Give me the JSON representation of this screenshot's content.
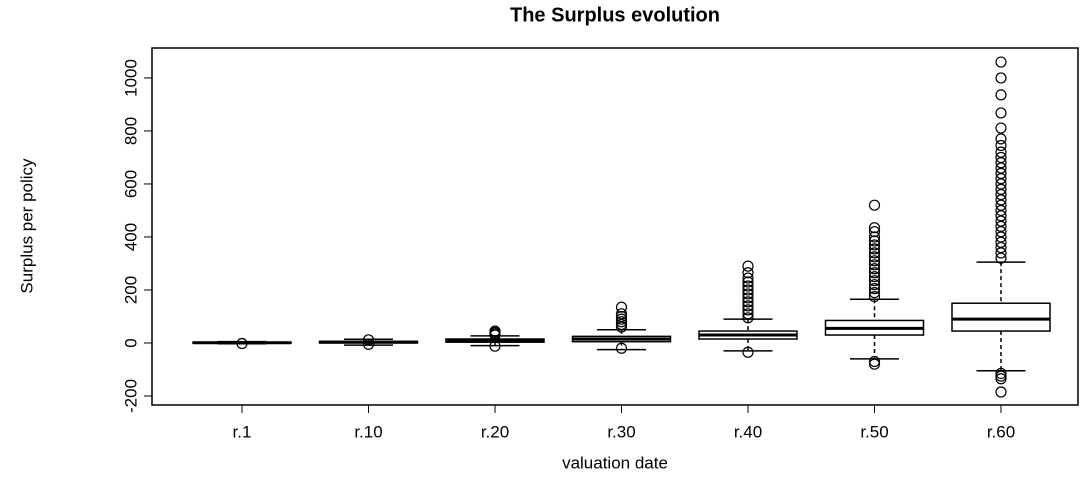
{
  "chart_data": {
    "type": "boxplot",
    "title": "The Surplus evolution",
    "x_label": "valuation date",
    "y_label": "Surplus per policy",
    "categories": [
      "r.1",
      "r.10",
      "r.20",
      "r.30",
      "r.40",
      "r.50",
      "r.60"
    ],
    "boxes": [
      {
        "min": -3,
        "q1": 0,
        "median": 1,
        "q3": 3,
        "max": 5,
        "outliers": [
          -2
        ]
      },
      {
        "min": -8,
        "q1": 0,
        "median": 3,
        "q3": 6,
        "max": 14,
        "outliers": [
          -5,
          12
        ]
      },
      {
        "min": -10,
        "q1": 3,
        "median": 8,
        "q3": 15,
        "max": 27,
        "outliers": [
          -12,
          30,
          35,
          40,
          45
        ]
      },
      {
        "min": -25,
        "q1": 5,
        "median": 15,
        "q3": 25,
        "max": 50,
        "outliers": [
          -20,
          60,
          70,
          80,
          90,
          100,
          110,
          135
        ]
      },
      {
        "min": -30,
        "q1": 15,
        "median": 30,
        "q3": 45,
        "max": 90,
        "outliers": [
          -35,
          95,
          110,
          125,
          140,
          155,
          170,
          185,
          200,
          215,
          230,
          245,
          265,
          290
        ]
      },
      {
        "min": -60,
        "q1": 30,
        "median": 55,
        "q3": 85,
        "max": 165,
        "outliers": [
          -70,
          -80,
          175,
          190,
          205,
          220,
          235,
          250,
          265,
          280,
          295,
          310,
          325,
          340,
          355,
          370,
          385,
          400,
          420,
          435,
          520
        ]
      },
      {
        "min": -105,
        "q1": 45,
        "median": 90,
        "q3": 150,
        "max": 305,
        "outliers": [
          -115,
          -125,
          -135,
          -185,
          320,
          340,
          360,
          380,
          400,
          420,
          440,
          460,
          480,
          500,
          520,
          540,
          560,
          580,
          600,
          620,
          640,
          660,
          680,
          700,
          720,
          745,
          770,
          811,
          868,
          936,
          1000,
          1060
        ]
      }
    ],
    "color": "#000000",
    "ylim": [
      -234,
      1113
    ],
    "yticks": [
      -200,
      0,
      200,
      400,
      600,
      800,
      1000
    ]
  }
}
